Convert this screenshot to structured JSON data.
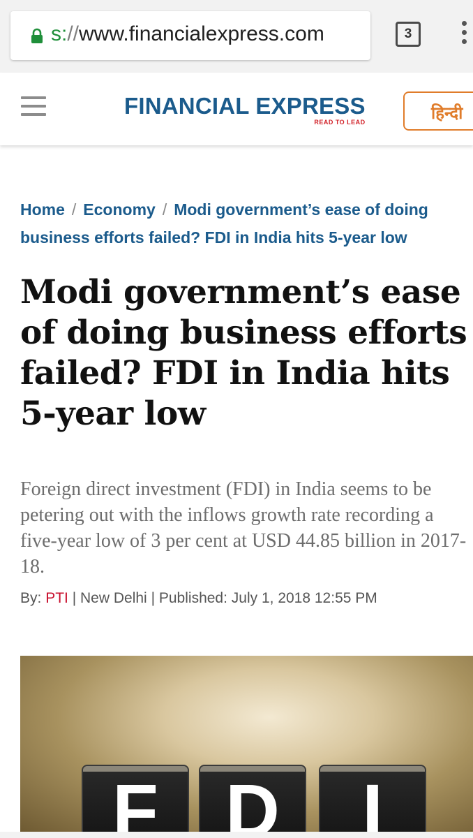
{
  "browser": {
    "url_scheme": "s:",
    "url_sep": "//",
    "url_host": "www.financialexpress.com",
    "tab_count": "3",
    "lock_icon": "lock-icon",
    "menu_icon": "overflow-menu-icon",
    "colors": {
      "secure": "#1f8f3a"
    }
  },
  "header": {
    "menu_icon": "hamburger-icon",
    "logo_text": "FINANCIAL EXPRESS",
    "logo_tagline": "READ TO LEAD",
    "language_button": "हिन्दी",
    "colors": {
      "logo": "#1b5b8c",
      "tagline": "#d2232a",
      "language": "#e07c2a"
    }
  },
  "breadcrumb": {
    "items": [
      {
        "label": "Home"
      },
      {
        "label": "Economy"
      },
      {
        "label": "Modi government’s ease of doing business efforts failed? FDI in India hits 5-year low"
      }
    ],
    "separator": "/"
  },
  "article": {
    "headline": "Modi government’s ease of doing business efforts failed? FDI in India hits 5-year low",
    "summary": "Foreign direct investment (FDI) in India seems to be petering out with the inflows growth rate recording a five-year low of 3 per cent at USD 44.85 billion in 2017-18.",
    "byline": {
      "by_label": "By:",
      "author": "PTI",
      "divider": "|",
      "location": "New Delhi",
      "published_label": "Published:",
      "published_date": "July 1, 2018 12:55 PM"
    },
    "image": {
      "letters": [
        "F",
        "D",
        "I"
      ]
    },
    "colors": {
      "author": "#c8102e",
      "link": "#1b5b8c"
    }
  }
}
